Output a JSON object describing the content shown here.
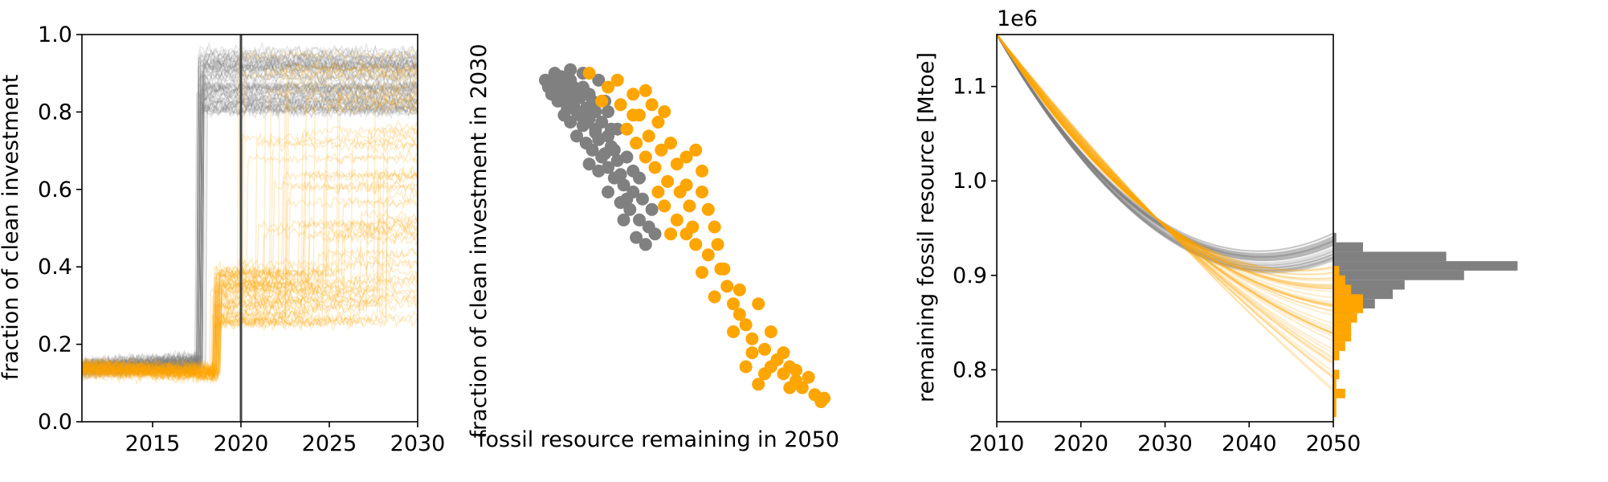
{
  "colors": {
    "gray": "#808080",
    "orange": "#FFA500",
    "axis": "#000000"
  },
  "chart_data": [
    {
      "type": "line",
      "ylabel": "fraction of clean investment",
      "xlabel": "",
      "xlim": [
        2011,
        2030
      ],
      "ylim": [
        0,
        1
      ],
      "x_ticks": [
        2015,
        2020,
        2025,
        2030
      ],
      "x_tick_labels": [
        "2015",
        "2020",
        "2025",
        "2030"
      ],
      "y_ticks": [
        0.0,
        0.2,
        0.4,
        0.6,
        0.8,
        1.0
      ],
      "y_tick_labels": [
        "0.0",
        "0.2",
        "0.4",
        "0.6",
        "0.8",
        "1.0"
      ],
      "vline_x": 2020,
      "series": [
        {
          "color": "gray",
          "description_values": "many noisy trajectories",
          "x": [
            2011,
            2013,
            2015,
            2016,
            2017,
            2017.6,
            2017.9,
            2018.5,
            2020,
            2022,
            2025,
            2028,
            2030
          ],
          "y_mean": [
            0.15,
            0.14,
            0.14,
            0.15,
            0.17,
            0.2,
            0.85,
            0.88,
            0.86,
            0.88,
            0.9,
            0.92,
            0.93
          ]
        },
        {
          "color": "orange",
          "x": [
            2011,
            2013,
            2015,
            2016,
            2017,
            2018,
            2018.7,
            2019.3,
            2020,
            2022,
            2025,
            2028,
            2030
          ],
          "y_mean": [
            0.14,
            0.13,
            0.13,
            0.12,
            0.11,
            0.12,
            0.3,
            0.35,
            0.3,
            0.45,
            0.6,
            0.7,
            0.75
          ]
        }
      ]
    },
    {
      "type": "scatter",
      "ylabel": "fraction of clean investment in 2030",
      "xlabel": "fossil resource remaining in 2050",
      "xlim": [
        0.0,
        1.0
      ],
      "ylim": [
        0.0,
        1.0
      ],
      "series": [
        {
          "color": "gray",
          "points": [
            [
              0.1,
              0.92
            ],
            [
              0.13,
              0.91
            ],
            [
              0.15,
              0.93
            ],
            [
              0.16,
              0.9
            ],
            [
              0.18,
              0.92
            ],
            [
              0.2,
              0.89
            ],
            [
              0.22,
              0.9
            ],
            [
              0.12,
              0.88
            ],
            [
              0.14,
              0.86
            ],
            [
              0.17,
              0.87
            ],
            [
              0.19,
              0.85
            ],
            [
              0.21,
              0.87
            ],
            [
              0.23,
              0.84
            ],
            [
              0.25,
              0.86
            ],
            [
              0.16,
              0.82
            ],
            [
              0.18,
              0.8
            ],
            [
              0.2,
              0.83
            ],
            [
              0.22,
              0.79
            ],
            [
              0.24,
              0.81
            ],
            [
              0.26,
              0.78
            ],
            [
              0.28,
              0.8
            ],
            [
              0.3,
              0.76
            ],
            [
              0.2,
              0.76
            ],
            [
              0.23,
              0.74
            ],
            [
              0.25,
              0.72
            ],
            [
              0.27,
              0.75
            ],
            [
              0.29,
              0.71
            ],
            [
              0.31,
              0.73
            ],
            [
              0.33,
              0.69
            ],
            [
              0.24,
              0.68
            ],
            [
              0.27,
              0.66
            ],
            [
              0.3,
              0.67
            ],
            [
              0.32,
              0.64
            ],
            [
              0.35,
              0.62
            ],
            [
              0.38,
              0.6
            ],
            [
              0.3,
              0.6
            ],
            [
              0.34,
              0.57
            ],
            [
              0.37,
              0.55
            ],
            [
              0.4,
              0.52
            ],
            [
              0.43,
              0.5
            ],
            [
              0.35,
              0.52
            ],
            [
              0.39,
              0.47
            ],
            [
              0.42,
              0.45
            ],
            [
              0.45,
              0.48
            ],
            [
              0.28,
              0.7
            ],
            [
              0.26,
              0.77
            ],
            [
              0.34,
              0.65
            ],
            [
              0.36,
              0.58
            ],
            [
              0.21,
              0.82
            ],
            [
              0.19,
              0.9
            ],
            [
              0.15,
              0.89
            ],
            [
              0.24,
              0.88
            ],
            [
              0.26,
              0.83
            ],
            [
              0.3,
              0.83
            ],
            [
              0.33,
              0.78
            ],
            [
              0.27,
              0.92
            ],
            [
              0.22,
              0.94
            ],
            [
              0.18,
              0.95
            ],
            [
              0.13,
              0.94
            ],
            [
              0.11,
              0.9
            ],
            [
              0.29,
              0.86
            ],
            [
              0.32,
              0.72
            ],
            [
              0.38,
              0.66
            ],
            [
              0.41,
              0.58
            ],
            [
              0.44,
              0.55
            ],
            [
              0.4,
              0.64
            ],
            [
              0.36,
              0.7
            ],
            [
              0.31,
              0.78
            ],
            [
              0.17,
              0.84
            ],
            [
              0.23,
              0.8
            ]
          ]
        },
        {
          "color": "orange",
          "points": [
            [
              0.24,
              0.94
            ],
            [
              0.3,
              0.9
            ],
            [
              0.34,
              0.85
            ],
            [
              0.38,
              0.88
            ],
            [
              0.4,
              0.82
            ],
            [
              0.42,
              0.89
            ],
            [
              0.44,
              0.85
            ],
            [
              0.46,
              0.8
            ],
            [
              0.48,
              0.83
            ],
            [
              0.36,
              0.78
            ],
            [
              0.39,
              0.74
            ],
            [
              0.43,
              0.76
            ],
            [
              0.47,
              0.72
            ],
            [
              0.5,
              0.74
            ],
            [
              0.52,
              0.68
            ],
            [
              0.55,
              0.7
            ],
            [
              0.58,
              0.72
            ],
            [
              0.6,
              0.66
            ],
            [
              0.45,
              0.67
            ],
            [
              0.49,
              0.63
            ],
            [
              0.53,
              0.6
            ],
            [
              0.56,
              0.56
            ],
            [
              0.6,
              0.6
            ],
            [
              0.62,
              0.55
            ],
            [
              0.64,
              0.5
            ],
            [
              0.48,
              0.56
            ],
            [
              0.52,
              0.52
            ],
            [
              0.55,
              0.48
            ],
            [
              0.58,
              0.45
            ],
            [
              0.62,
              0.42
            ],
            [
              0.66,
              0.38
            ],
            [
              0.68,
              0.33
            ],
            [
              0.6,
              0.37
            ],
            [
              0.64,
              0.3
            ],
            [
              0.7,
              0.28
            ],
            [
              0.72,
              0.25
            ],
            [
              0.74,
              0.22
            ],
            [
              0.7,
              0.2
            ],
            [
              0.76,
              0.18
            ],
            [
              0.8,
              0.15
            ],
            [
              0.82,
              0.1
            ],
            [
              0.84,
              0.12
            ],
            [
              0.86,
              0.08
            ],
            [
              0.88,
              0.1
            ],
            [
              0.9,
              0.06
            ],
            [
              0.92,
              0.04
            ],
            [
              0.94,
              0.07
            ],
            [
              0.96,
              0.02
            ],
            [
              0.98,
              0.0
            ],
            [
              0.99,
              0.01
            ],
            [
              0.78,
              0.28
            ],
            [
              0.82,
              0.2
            ],
            [
              0.86,
              0.14
            ],
            [
              0.74,
              0.1
            ],
            [
              0.78,
              0.05
            ],
            [
              0.88,
              0.04
            ],
            [
              0.55,
              0.62
            ],
            [
              0.57,
              0.5
            ],
            [
              0.5,
              0.48
            ],
            [
              0.46,
              0.6
            ],
            [
              0.42,
              0.7
            ],
            [
              0.38,
              0.82
            ],
            [
              0.33,
              0.92
            ],
            [
              0.28,
              0.86
            ],
            [
              0.65,
              0.45
            ],
            [
              0.67,
              0.38
            ],
            [
              0.72,
              0.32
            ],
            [
              0.76,
              0.14
            ],
            [
              0.8,
              0.08
            ],
            [
              0.9,
              0.09
            ]
          ]
        }
      ]
    },
    {
      "type": "line",
      "ylabel": "remaining fossil resource [Mtoe]",
      "xlabel": "",
      "offset_label": "1e6",
      "xlim": [
        2010,
        2050
      ],
      "ylim": [
        0.745,
        1.155
      ],
      "x_ticks": [
        2010,
        2020,
        2030,
        2040,
        2050
      ],
      "x_tick_labels": [
        "2010",
        "2020",
        "2030",
        "2040",
        "2050"
      ],
      "y_ticks": [
        0.8,
        0.9,
        1.0,
        1.1
      ],
      "y_tick_labels": [
        "0.8",
        "0.9",
        "1.0",
        "1.1"
      ],
      "series": [
        {
          "color": "gray",
          "start": [
            2010,
            1.155
          ],
          "end_range": [
            0.915,
            0.945
          ]
        },
        {
          "color": "orange",
          "start": [
            2010,
            1.155
          ],
          "end_range": [
            0.748,
            0.91
          ]
        }
      ]
    },
    {
      "type": "bar",
      "orientation": "horizontal",
      "axis": "shared y with remaining fossil resource",
      "series": [
        {
          "color": "gray",
          "bins": [
            [
              0.935,
              0.945,
              0.5
            ],
            [
              0.925,
              0.935,
              5
            ],
            [
              0.915,
              0.925,
              19
            ],
            [
              0.905,
              0.915,
              31
            ],
            [
              0.895,
              0.905,
              22
            ],
            [
              0.885,
              0.895,
              12
            ],
            [
              0.875,
              0.885,
              10
            ],
            [
              0.865,
              0.875,
              7
            ],
            [
              0.855,
              0.865,
              3
            ],
            [
              0.845,
              0.855,
              2
            ]
          ]
        },
        {
          "color": "orange",
          "bins": [
            [
              0.9,
              0.91,
              1
            ],
            [
              0.89,
              0.9,
              2
            ],
            [
              0.88,
              0.89,
              3
            ],
            [
              0.87,
              0.88,
              5
            ],
            [
              0.86,
              0.87,
              5
            ],
            [
              0.85,
              0.86,
              4
            ],
            [
              0.84,
              0.85,
              3
            ],
            [
              0.83,
              0.84,
              3
            ],
            [
              0.82,
              0.83,
              2
            ],
            [
              0.81,
              0.82,
              1
            ],
            [
              0.79,
              0.8,
              1
            ],
            [
              0.78,
              0.79,
              0.5
            ],
            [
              0.77,
              0.78,
              2
            ],
            [
              0.76,
              0.77,
              0.5
            ],
            [
              0.75,
              0.76,
              0.5
            ]
          ]
        }
      ]
    }
  ]
}
